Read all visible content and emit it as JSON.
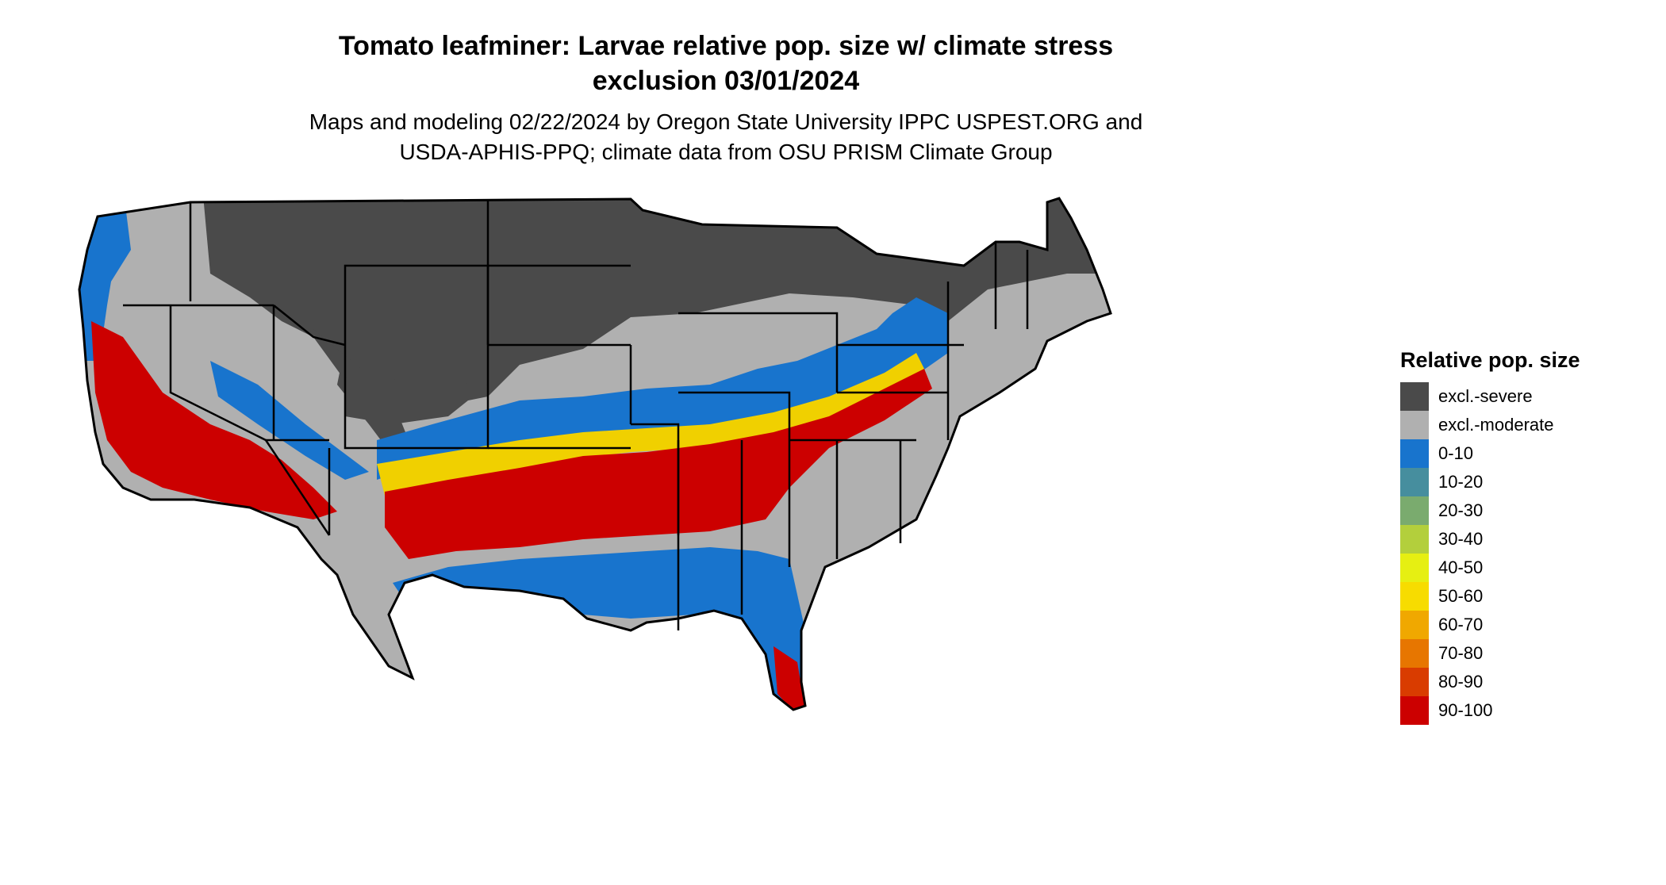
{
  "title": {
    "line1": "Tomato leafminer: Larvae relative pop. size w/ climate stress",
    "line2": "exclusion 03/01/2024"
  },
  "subtitle": {
    "line1": "Maps and modeling 02/22/2024 by Oregon State University IPPC USPEST.ORG and",
    "line2": "USDA-APHIS-PPQ; climate data from OSU PRISM Climate Group"
  },
  "legend": {
    "title": "Relative pop. size",
    "items": [
      {
        "label": "excl.-severe",
        "color": "#4a4a4a"
      },
      {
        "label": "excl.-moderate",
        "color": "#b0b0b0"
      },
      {
        "label": "0-10",
        "color": "#1874cd"
      },
      {
        "label": "10-20",
        "color": "#468e9e"
      },
      {
        "label": "20-30",
        "color": "#7aab6e"
      },
      {
        "label": "30-40",
        "color": "#b3cf3c"
      },
      {
        "label": "40-50",
        "color": "#e6ef12"
      },
      {
        "label": "50-60",
        "color": "#f7dc00"
      },
      {
        "label": "60-70",
        "color": "#f0a800"
      },
      {
        "label": "70-80",
        "color": "#e77600"
      },
      {
        "label": "80-90",
        "color": "#d93c00"
      },
      {
        "label": "90-100",
        "color": "#cc0000"
      }
    ]
  },
  "map": {
    "region": "contiguous-united-states",
    "boundary_color": "#000000"
  }
}
